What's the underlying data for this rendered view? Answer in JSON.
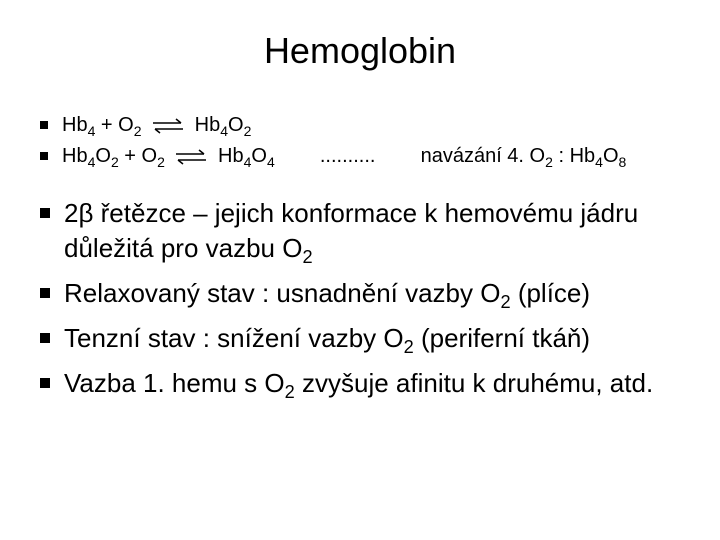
{
  "colors": {
    "bg": "#ffffff",
    "text": "#000000",
    "bullet": "#000000",
    "arrow_stroke": "#000000"
  },
  "typography": {
    "title_fontsize": 36,
    "small_bullet_fontsize": 20,
    "big_bullet_fontsize": 26,
    "font_family": "Arial"
  },
  "title": "Hemoglobin",
  "reactions": {
    "r1": {
      "lhs": "Hb₄ + O₂",
      "rhs": "Hb₄O₂"
    },
    "r2": {
      "lhs": "Hb₄O₂ + O₂",
      "rhs": "Hb₄O₄",
      "dots": "..........",
      "tail": "navázání 4. O₂ : Hb₄O₈"
    }
  },
  "bullets": {
    "b1": "2β řetězce – jejich konformace k hemovému jádru důležitá pro vazbu O₂",
    "b2": "Relaxovaný stav : usnadnění vazby O₂   (plíce)",
    "b3": "Tenzní stav : snížení vazby O₂ (periferní tkáň)",
    "b4": "Vazba 1. hemu s O₂ zvyšuje afinitu k druhému, atd."
  }
}
